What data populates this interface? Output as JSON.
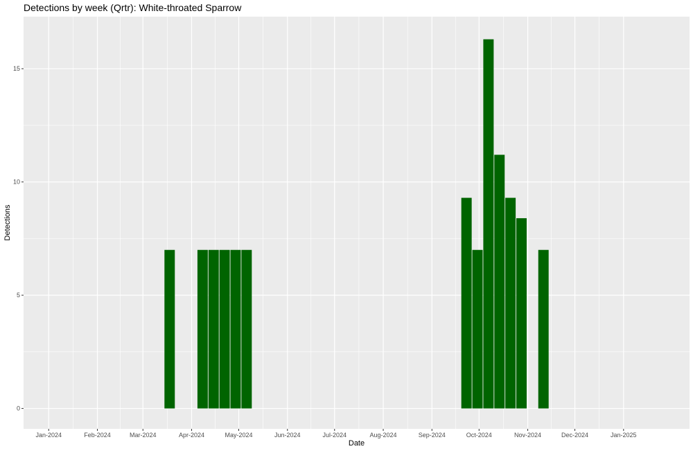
{
  "chart_data": {
    "type": "bar",
    "title": "Detections by week (Qrtr): White-throated Sparrow",
    "xlabel": "Date",
    "ylabel": "Detections",
    "x_axis": {
      "type": "date",
      "range": [
        "2023-12-16",
        "2025-02-12"
      ],
      "ticks": [
        {
          "date": "2024-01-01",
          "label": "Jan-2024"
        },
        {
          "date": "2024-02-01",
          "label": "Feb-2024"
        },
        {
          "date": "2024-03-01",
          "label": "Mar-2024"
        },
        {
          "date": "2024-04-01",
          "label": "Apr-2024"
        },
        {
          "date": "2024-05-01",
          "label": "May-2024"
        },
        {
          "date": "2024-06-01",
          "label": "Jun-2024"
        },
        {
          "date": "2024-07-01",
          "label": "Jul-2024"
        },
        {
          "date": "2024-08-01",
          "label": "Aug-2024"
        },
        {
          "date": "2024-09-01",
          "label": "Sep-2024"
        },
        {
          "date": "2024-10-01",
          "label": "Oct-2024"
        },
        {
          "date": "2024-11-01",
          "label": "Nov-2024"
        },
        {
          "date": "2024-12-01",
          "label": "Dec-2024"
        },
        {
          "date": "2025-01-01",
          "label": "Jan-2025"
        }
      ]
    },
    "y_axis": {
      "range": [
        -0.9,
        17.3
      ],
      "ticks": [
        0,
        5,
        10,
        15
      ]
    },
    "grid": true,
    "bar_color": "#006400",
    "background": "#ebebeb",
    "series": [
      {
        "points": [
          {
            "x": "2024-03-18",
            "y": 7.0
          },
          {
            "x": "2024-04-08",
            "y": 7.0
          },
          {
            "x": "2024-04-15",
            "y": 7.0
          },
          {
            "x": "2024-04-22",
            "y": 7.0
          },
          {
            "x": "2024-04-29",
            "y": 7.0
          },
          {
            "x": "2024-05-06",
            "y": 7.0
          },
          {
            "x": "2024-09-23",
            "y": 9.3
          },
          {
            "x": "2024-09-30",
            "y": 7.0
          },
          {
            "x": "2024-10-07",
            "y": 16.3
          },
          {
            "x": "2024-10-14",
            "y": 11.2
          },
          {
            "x": "2024-10-21",
            "y": 9.3
          },
          {
            "x": "2024-10-28",
            "y": 8.4
          },
          {
            "x": "2024-11-11",
            "y": 7.0
          }
        ]
      }
    ]
  }
}
